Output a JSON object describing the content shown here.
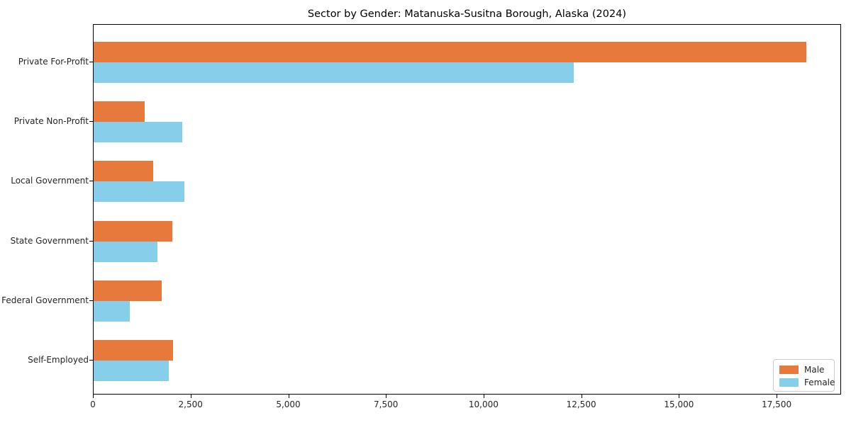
{
  "title": "Sector by Gender: Matanuska-Susitna Borough, Alaska (2024)",
  "chart_data": {
    "type": "bar",
    "orientation": "horizontal",
    "title": "Sector by Gender: Matanuska-Susitna Borough, Alaska (2024)",
    "xlabel": "",
    "ylabel": "",
    "categories": [
      "Private For-Profit",
      "Private Non-Profit",
      "Local Government",
      "State Government",
      "Federal Government",
      "Self-Employed"
    ],
    "series": [
      {
        "name": "Male",
        "color": "#e8793d",
        "values": [
          18240,
          1300,
          1530,
          2020,
          1740,
          2030
        ]
      },
      {
        "name": "Female",
        "color": "#87ceeb",
        "values": [
          12290,
          2260,
          2330,
          1640,
          930,
          1920
        ]
      }
    ],
    "xlim": [
      0,
      19150
    ],
    "xticks": [
      0,
      2500,
      5000,
      7500,
      10000,
      12500,
      15000,
      17500
    ],
    "xtick_labels": [
      "0",
      "2,500",
      "5,000",
      "7,500",
      "10,000",
      "12,500",
      "15,000",
      "17,500"
    ],
    "legend_position": "lower right",
    "grid": false,
    "colors": {
      "male": "#e8793d",
      "female": "#87ceeb",
      "spine": "#000000",
      "background": "#ffffff"
    }
  }
}
